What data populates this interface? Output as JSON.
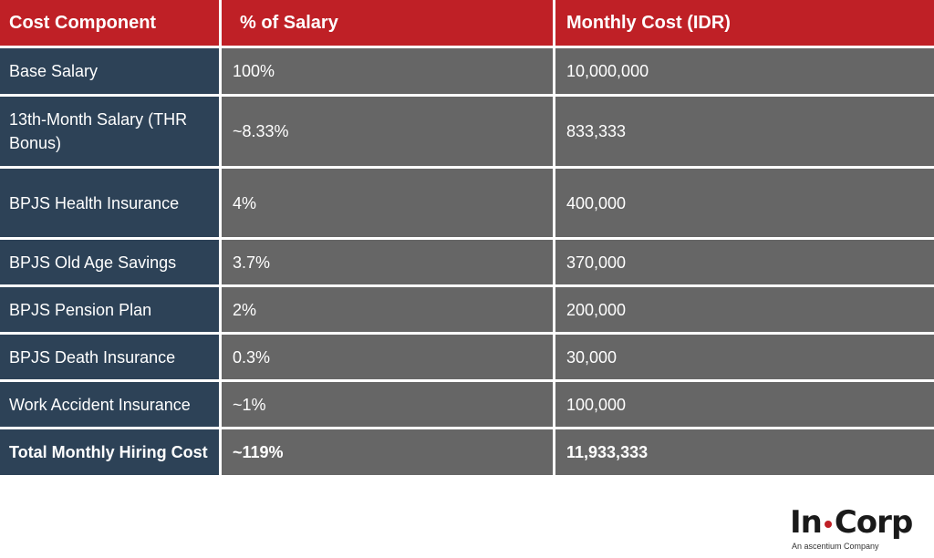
{
  "table": {
    "headers": [
      "Cost Component",
      "% of Salary",
      "Monthly Cost (IDR)"
    ],
    "rows": [
      {
        "component": "Base Salary",
        "percent": "100%",
        "cost": "10,000,000"
      },
      {
        "component": "13th-Month Salary (THR Bonus)",
        "percent": "~8.33%",
        "cost": "833,333"
      },
      {
        "component": "BPJS Health Insurance",
        "percent": "4%",
        "cost": "400,000"
      },
      {
        "component": "BPJS Old Age Savings",
        "percent": "3.7%",
        "cost": "370,000"
      },
      {
        "component": "BPJS Pension Plan",
        "percent": "2%",
        "cost": "200,000"
      },
      {
        "component": "BPJS Death Insurance",
        "percent": "0.3%",
        "cost": "30,000"
      },
      {
        "component": "Work Accident Insurance",
        "percent": "~1%",
        "cost": "100,000"
      }
    ],
    "total": {
      "component": "Total Monthly Hiring Cost",
      "percent": "~119%",
      "cost": "11,933,333"
    }
  },
  "logo": {
    "brand_left": "In",
    "brand_right": "Corp",
    "tagline": "An ascentium Company"
  },
  "colors": {
    "header_bg": "#bf2026",
    "component_bg": "#2d4257",
    "value_bg": "#666666"
  }
}
